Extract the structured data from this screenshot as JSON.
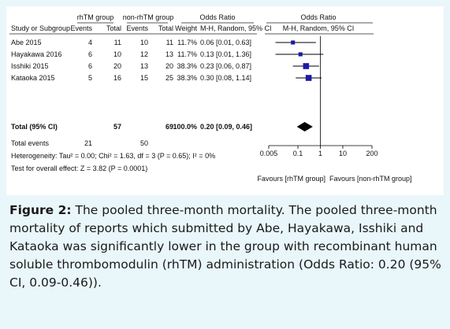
{
  "chart_data": {
    "type": "forest",
    "columns": {
      "group1_header": "rhTM group",
      "group2_header": "non-rhTM group",
      "effect_header": "Odds Ratio",
      "plot_header": "Odds Ratio",
      "study_col": "Study or Subgroup",
      "events_col": "Events",
      "total_col": "Total",
      "weight_col": "Weight",
      "method_col": "M-H, Random, 95% CI",
      "plot_method": "M-H, Random, 95% CI"
    },
    "studies": [
      {
        "name": "Abe 2015",
        "e1": "4",
        "t1": "11",
        "e2": "10",
        "t2": "11",
        "weight": "11.7%",
        "ci_text": "0.06 [0.01, 0.63]",
        "or": 0.06,
        "lo": 0.01,
        "hi": 0.63,
        "w": 11.7
      },
      {
        "name": "Hayakawa 2016",
        "e1": "6",
        "t1": "10",
        "e2": "12",
        "t2": "13",
        "weight": "11.7%",
        "ci_text": "0.13 [0.01, 1.36]",
        "or": 0.13,
        "lo": 0.01,
        "hi": 1.36,
        "w": 11.7
      },
      {
        "name": "Isshiki 2015",
        "e1": "6",
        "t1": "20",
        "e2": "13",
        "t2": "20",
        "weight": "38.3%",
        "ci_text": "0.23 [0.06, 0.87]",
        "or": 0.23,
        "lo": 0.06,
        "hi": 0.87,
        "w": 38.3
      },
      {
        "name": "Kataoka 2015",
        "e1": "5",
        "t1": "16",
        "e2": "15",
        "t2": "25",
        "weight": "38.3%",
        "ci_text": "0.30 [0.08, 1.14]",
        "or": 0.3,
        "lo": 0.08,
        "hi": 1.14,
        "w": 38.3
      }
    ],
    "total": {
      "label": "Total (95% CI)",
      "t1": "57",
      "t2": "69",
      "weight": "100.0%",
      "ci_text": "0.20 [0.09, 0.46]",
      "or": 0.2,
      "lo": 0.09,
      "hi": 0.46
    },
    "total_events": {
      "label": "Total events",
      "e1": "21",
      "e2": "50"
    },
    "heterogeneity": "Heterogeneity: Tau² = 0.00; Chi² = 1.63, df = 3 (P = 0.65); I² = 0%",
    "overall_effect": "Test for overall effect: Z = 3.82 (P = 0.0001)",
    "axis": {
      "scale": "log",
      "xlim": [
        0.005,
        200
      ],
      "ticks": [
        0.005,
        0.1,
        1,
        10,
        200
      ],
      "tick_labels": [
        "0.005",
        "0.1",
        "1",
        "10",
        "200"
      ],
      "null_line": 1
    },
    "favours_left": "Favours [rhTM group]",
    "favours_right": "Favours [non-rhTM group]",
    "colors": {
      "square": "#1a1aa6",
      "diamond": "#000000",
      "line": "#000000"
    }
  },
  "caption": {
    "label": "Figure 2:",
    "text": " The pooled three-month mortality. The pooled three-month mortality of reports which submitted by Abe, Hayakawa, Isshiki and Kataoka was significantly lower in the group with recombinant human soluble thrombomodulin (rhTM) administration (Odds Ratio: 0.20 (95% CI, 0.09-0.46))."
  }
}
